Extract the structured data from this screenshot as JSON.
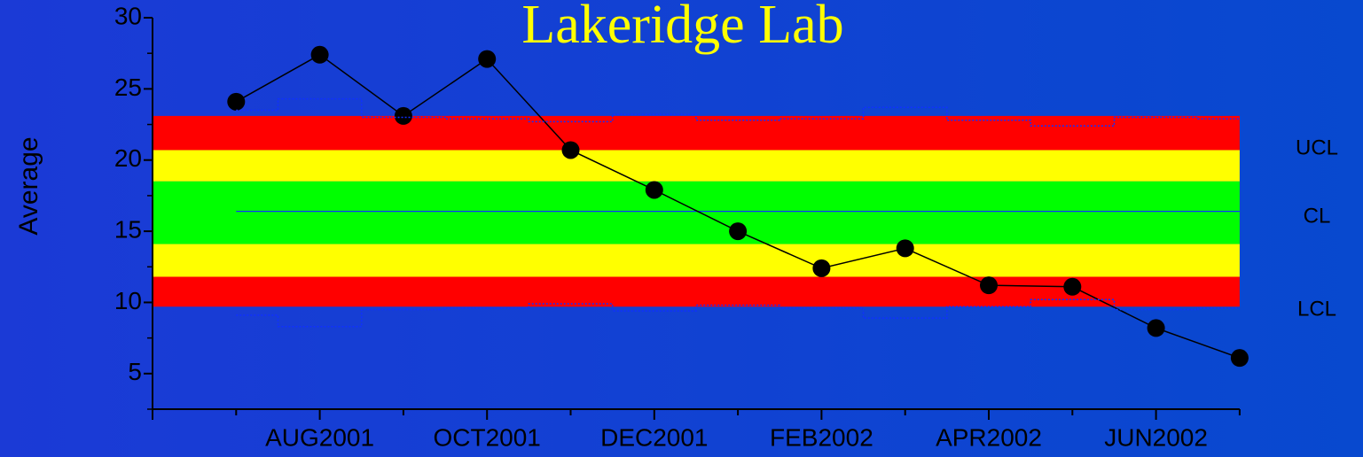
{
  "chart_data": {
    "type": "line",
    "title": "Lakeridge Lab",
    "y_label": "Average",
    "categories": [
      null,
      "AUG2001",
      null,
      "OCT2001",
      null,
      "DEC2001",
      null,
      "FEB2002",
      null,
      "APR2002",
      null,
      "JUN2002",
      null
    ],
    "series": [
      {
        "name": "Average",
        "color": "#000000",
        "values": [
          24.1,
          27.4,
          23.1,
          27.1,
          20.7,
          17.9,
          15.0,
          12.4,
          13.8,
          11.2,
          11.1,
          8.2,
          6.1
        ]
      },
      {
        "name": "UCL",
        "color": "#1030ff",
        "dotted": true,
        "values": [
          23.5,
          24.3,
          23.0,
          22.9,
          22.7,
          23.2,
          22.8,
          22.9,
          23.7,
          22.8,
          22.4,
          23.0,
          22.9
        ]
      },
      {
        "name": "LCL",
        "color": "#1030ff",
        "dotted": true,
        "values": [
          9.1,
          8.3,
          9.5,
          9.6,
          9.9,
          9.4,
          9.8,
          9.6,
          8.9,
          9.7,
          10.2,
          9.5,
          9.6
        ]
      }
    ],
    "center_line": {
      "value": 16.4,
      "color": "#1030ff"
    },
    "zones": [
      {
        "from": 20.7,
        "to": 23.1,
        "color": "#ff0000"
      },
      {
        "from": 18.5,
        "to": 20.7,
        "color": "#ffff00"
      },
      {
        "from": 14.1,
        "to": 18.5,
        "color": "#00ff00"
      },
      {
        "from": 11.8,
        "to": 14.1,
        "color": "#ffff00"
      },
      {
        "from": 9.7,
        "to": 11.8,
        "color": "#ff0000"
      }
    ],
    "limit_labels": [
      "UCL",
      "CL",
      "LCL"
    ],
    "ylim": [
      2.5,
      30
    ],
    "yticks": [
      5,
      10,
      15,
      20,
      25,
      30
    ],
    "yminorticks": [
      2.5,
      7.5,
      12.5,
      17.5,
      22.5,
      27.5
    ]
  }
}
